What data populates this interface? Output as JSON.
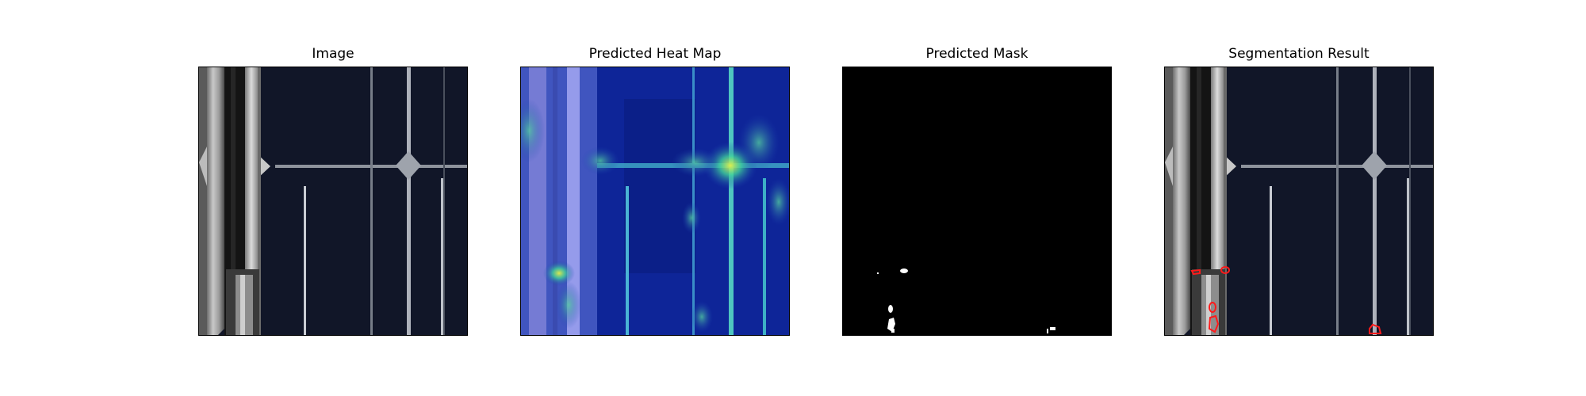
{
  "panels": [
    {
      "title": "Image"
    },
    {
      "title": "Predicted Heat Map"
    },
    {
      "title": "Predicted Mask"
    },
    {
      "title": "Segmentation Result"
    }
  ],
  "colors": {
    "cell_background": "#111628",
    "frame_metal": "#9a9a9a",
    "busbar": "#a9adb8",
    "heatmap_low": "#0c1e8a",
    "heatmap_high": "#d7e84a",
    "mask_background": "#000000",
    "mask_foreground": "#ffffff",
    "contour": "#ff1a1a"
  },
  "icons": [
    "solar-cell-photo",
    "heatmap-overlay",
    "binary-mask",
    "segmentation-overlay"
  ]
}
